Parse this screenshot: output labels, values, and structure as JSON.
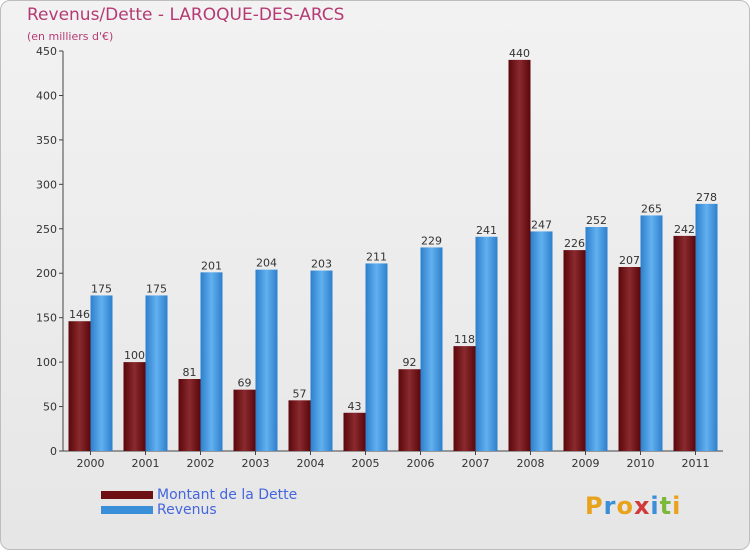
{
  "header": {
    "title": "Revenus/Dette - LAROQUE-DES-ARCS",
    "subtitle": "(en milliers d'€)"
  },
  "legend": {
    "debt_label": "Montant de la Dette",
    "revenue_label": "Revenus"
  },
  "logo": {
    "text": "Proxiti"
  },
  "colors": {
    "debt": "#6e0f14",
    "revenue": "#3b8fd9",
    "title": "#b53a74",
    "legend_text": "#4466dd"
  },
  "chart_data": {
    "type": "bar",
    "title": "Revenus/Dette - LAROQUE-DES-ARCS",
    "ylabel": "(en milliers d'€)",
    "xlabel": "",
    "categories": [
      "2000",
      "2001",
      "2002",
      "2003",
      "2004",
      "2005",
      "2006",
      "2007",
      "2008",
      "2009",
      "2010",
      "2011"
    ],
    "series": [
      {
        "name": "Montant de la Dette",
        "values": [
          146,
          100,
          81,
          69,
          57,
          43,
          92,
          118,
          440,
          226,
          207,
          242
        ]
      },
      {
        "name": "Revenus",
        "values": [
          175,
          175,
          201,
          204,
          203,
          211,
          229,
          241,
          247,
          252,
          265,
          278
        ]
      }
    ],
    "ylim": [
      0,
      450
    ],
    "yticks": [
      0,
      50,
      100,
      150,
      200,
      250,
      300,
      350,
      400,
      450
    ],
    "grid": false,
    "legend_position": "bottom-left"
  }
}
